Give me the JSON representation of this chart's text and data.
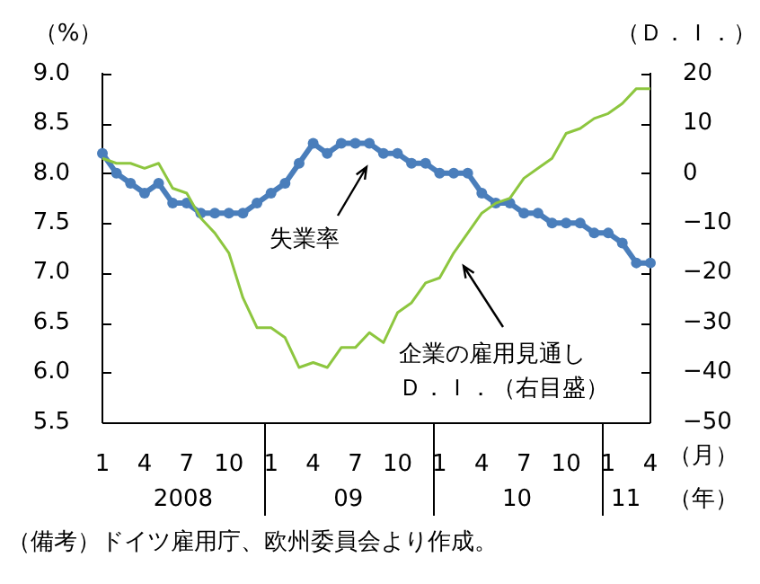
{
  "chart_data": {
    "type": "line",
    "ylabel": "（%）",
    "y2label": "（Ｄ．Ｉ．）",
    "categories": [
      "1",
      null,
      null,
      "4",
      null,
      null,
      "7",
      null,
      null,
      "10",
      null,
      null,
      "1",
      null,
      null,
      "4",
      null,
      null,
      "7",
      null,
      null,
      "10",
      null,
      null,
      "1",
      null,
      null,
      "4",
      null,
      null,
      "7",
      null,
      null,
      "10",
      null,
      null,
      "1",
      null,
      null,
      "4"
    ],
    "series": [
      {
        "name": "失業率",
        "color": "#4a7ebb",
        "marker": "circle",
        "values": [
          8.2,
          8.0,
          7.9,
          7.8,
          7.9,
          7.7,
          7.7,
          7.6,
          7.6,
          7.6,
          7.6,
          7.7,
          7.8,
          7.9,
          8.1,
          8.3,
          8.2,
          8.3,
          8.3,
          8.3,
          8.2,
          8.2,
          8.1,
          8.1,
          8.0,
          8.0,
          8.0,
          7.8,
          7.7,
          7.7,
          7.6,
          7.6,
          7.5,
          7.5,
          7.5,
          7.4,
          7.4,
          7.3,
          7.1,
          7.1
        ]
      },
      {
        "name": "企業の雇用見通しＤ．Ｉ．（右目盛）",
        "color": "#8dc63f",
        "marker": "none",
        "axis": "y2",
        "values": [
          3,
          2,
          2,
          1,
          2,
          -3,
          -4,
          -9,
          -12,
          -16,
          -25,
          -31,
          -31,
          -33,
          -39,
          -38,
          -39,
          -35,
          -35,
          -32,
          -34,
          -28,
          -26,
          -22,
          -21,
          -16,
          -12,
          -8,
          -6,
          -5,
          -1,
          1,
          3,
          8,
          9,
          11,
          12,
          14,
          17,
          17
        ]
      }
    ],
    "ylim": [
      5.5,
      9.0
    ],
    "yticks": [
      {
        "value": 5.5,
        "label": "5.5"
      },
      {
        "value": 6,
        "label": "6.0"
      },
      {
        "value": 6.5,
        "label": "6.5"
      },
      {
        "value": 7,
        "label": "7.0"
      },
      {
        "value": 7.5,
        "label": "7.5"
      },
      {
        "value": 8,
        "label": "8.0"
      },
      {
        "value": 8.5,
        "label": "8.5"
      },
      {
        "value": 9,
        "label": "9.0"
      }
    ],
    "y2lim": [
      -50,
      20
    ],
    "y2ticks": [
      {
        "value": -50,
        "label": "−50"
      },
      {
        "value": -40,
        "label": "−40"
      },
      {
        "value": -30,
        "label": "−30"
      },
      {
        "value": -20,
        "label": "−20"
      },
      {
        "value": -10,
        "label": "−10"
      },
      0,
      10,
      20
    ],
    "annotations": [
      "2008",
      "09",
      "10",
      "11",
      "（月）",
      "（年）",
      "（備考）ドイツ雇用庁、欧州委員会より作成。"
    ],
    "legend": false
  }
}
